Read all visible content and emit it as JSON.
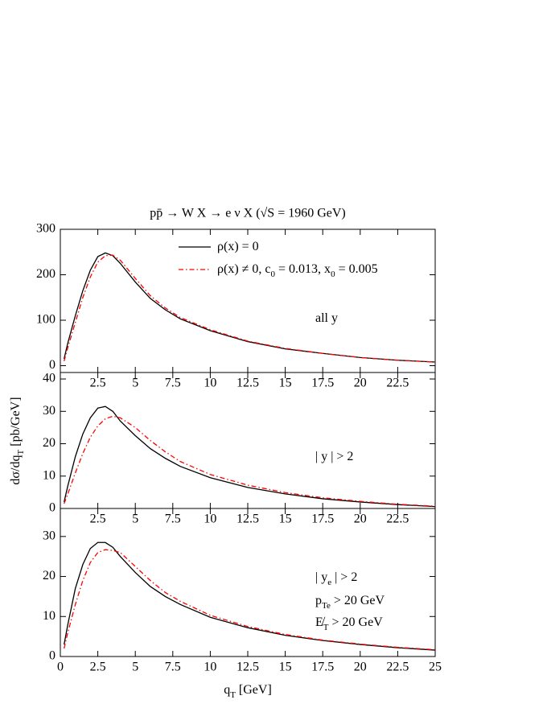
{
  "chart_data": [
    {
      "type": "line",
      "title": "pp̄  →  W X  → e ν X   (√S  = 1960 GeV)",
      "x": [
        0.25,
        0.5,
        1,
        1.5,
        2,
        2.5,
        3,
        3.5,
        4,
        5,
        6,
        7,
        8,
        10,
        12.5,
        15,
        17.5,
        20,
        22.5,
        25
      ],
      "xlim": [
        0,
        25
      ],
      "xticks": [
        2.5,
        5,
        7.5,
        10,
        12.5,
        15,
        17.5,
        20,
        22.5
      ],
      "ylim": [
        -15,
        300
      ],
      "yticks": [
        0,
        100,
        200,
        300
      ],
      "legend": "upper right",
      "annotations": [
        [
          "all y"
        ]
      ],
      "series": [
        {
          "name": [
            "ρ(x) = 0"
          ],
          "color": "#000000",
          "style": "solid",
          "values": [
            15,
            50,
            110,
            165,
            210,
            240,
            248,
            242,
            225,
            184,
            148,
            123,
            103,
            77,
            53,
            37,
            27,
            18,
            12,
            8
          ]
        },
        {
          "name": [
            "ρ(x) ≠ 0,  c",
            "0",
            " = 0.013,  x",
            "0",
            " = 0.005"
          ],
          "color": "#ff0000",
          "style": "dashdot",
          "values": [
            10,
            40,
            95,
            150,
            195,
            228,
            242,
            243,
            232,
            192,
            154,
            127,
            106,
            79,
            54,
            38,
            27,
            18,
            12,
            8
          ]
        }
      ]
    },
    {
      "type": "line",
      "ylabel": [
        "dσ/dq",
        "T",
        "  [pb/GeV]"
      ],
      "x": [
        0.25,
        0.5,
        1,
        1.5,
        2,
        2.5,
        3,
        3.5,
        4,
        5,
        6,
        7,
        8,
        10,
        12.5,
        15,
        17.5,
        20,
        22.5,
        25
      ],
      "xlim": [
        0,
        25
      ],
      "xticks": [
        2.5,
        5,
        7.5,
        10,
        12.5,
        15,
        17.5,
        20,
        22.5
      ],
      "ylim": [
        0,
        42
      ],
      "yticks": [
        0,
        10,
        20,
        30,
        40
      ],
      "annotations": [
        [
          "| y |  >  2"
        ]
      ],
      "series": [
        {
          "color": "#000000",
          "style": "solid",
          "values": [
            2,
            7,
            16,
            23,
            28,
            31,
            31.5,
            30,
            27,
            22.5,
            18.5,
            15.5,
            13,
            9.5,
            6.5,
            4.5,
            3,
            2,
            1.2,
            0.6
          ]
        },
        {
          "color": "#ff0000",
          "style": "dashdot",
          "values": [
            1.5,
            4.5,
            11,
            17,
            22,
            25.5,
            27.7,
            28.5,
            28,
            25,
            21,
            17.5,
            14.5,
            10.5,
            7.2,
            4.9,
            3.3,
            2.2,
            1.3,
            0.7
          ]
        }
      ]
    },
    {
      "type": "line",
      "xlabel": [
        "q",
        "T",
        "  [GeV]"
      ],
      "x": [
        0.25,
        0.5,
        1,
        1.5,
        2,
        2.5,
        3,
        3.5,
        4,
        5,
        6,
        7,
        8,
        10,
        12.5,
        15,
        17.5,
        20,
        22.5,
        25
      ],
      "xlim": [
        0,
        25
      ],
      "xticks": [
        0,
        2.5,
        5,
        7.5,
        10,
        12.5,
        15,
        17.5,
        20,
        22.5,
        25
      ],
      "ylim": [
        0,
        37
      ],
      "yticks": [
        0,
        10,
        20,
        30
      ],
      "annotations": [
        [
          "| y",
          "e",
          " |  >  2"
        ],
        [
          "p",
          "Te",
          "   >  20 GeV"
        ],
        [
          "E̸",
          "T",
          "   >  20 GeV"
        ]
      ],
      "series": [
        {
          "color": "#000000",
          "style": "solid",
          "values": [
            3,
            8,
            17,
            23,
            27,
            28.5,
            28.5,
            27.3,
            25,
            21,
            17.5,
            15,
            13,
            9.8,
            7.2,
            5.3,
            4,
            3,
            2.2,
            1.6
          ]
        },
        {
          "color": "#ff0000",
          "style": "dashdot",
          "values": [
            2,
            6,
            13,
            19,
            23.5,
            26,
            26.7,
            26.5,
            26,
            22.5,
            19,
            16,
            13.8,
            10.3,
            7.5,
            5.5,
            4.1,
            3.1,
            2.3,
            1.7
          ]
        }
      ]
    }
  ]
}
